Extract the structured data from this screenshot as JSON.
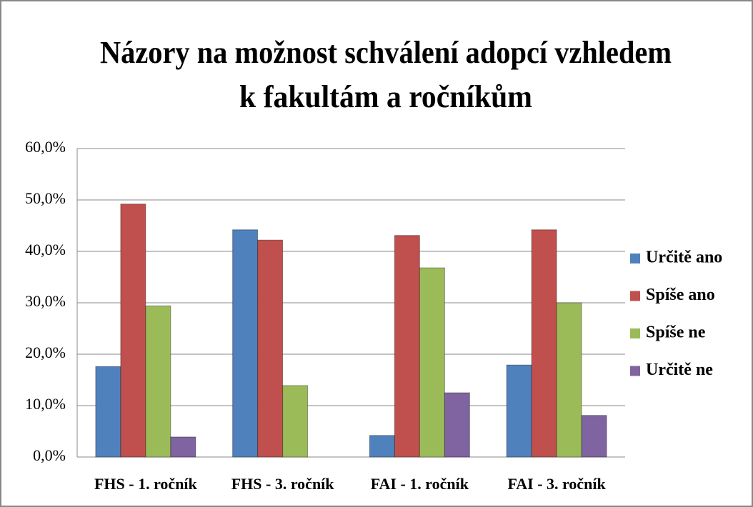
{
  "chart_data": {
    "type": "bar",
    "title": [
      "Názory na možnost schválení adopcí vzhledem",
      "k fakultám a ročníkům"
    ],
    "categories": [
      "FHS - 1. ročník",
      "FHS - 3. ročník",
      "FAI - 1. ročník",
      "FAI - 3. ročník"
    ],
    "series": [
      {
        "name": "Určitě ano",
        "color": "#4f81bd",
        "values": [
          17.6,
          44.2,
          4.2,
          17.9
        ]
      },
      {
        "name": "Spíše ano",
        "color": "#c0504d",
        "values": [
          49.2,
          42.2,
          43.1,
          44.2
        ]
      },
      {
        "name": "Spíše ne",
        "color": "#9bbb59",
        "values": [
          29.4,
          13.9,
          36.8,
          30.0
        ]
      },
      {
        "name": "Určitě ne",
        "color": "#8064a2",
        "values": [
          3.9,
          0,
          12.5,
          8.1
        ]
      }
    ],
    "ylim": [
      0,
      60
    ],
    "yticks": [
      {
        "value": 0,
        "label": "0,0%"
      },
      {
        "value": 10,
        "label": "10,0%"
      },
      {
        "value": 20,
        "label": "20,0%"
      },
      {
        "value": 30,
        "label": "30,0%"
      },
      {
        "value": 40,
        "label": "40,0%"
      },
      {
        "value": 50,
        "label": "50,0%"
      },
      {
        "value": 60,
        "label": "60,0%"
      }
    ],
    "grid": true,
    "legend": "right"
  }
}
